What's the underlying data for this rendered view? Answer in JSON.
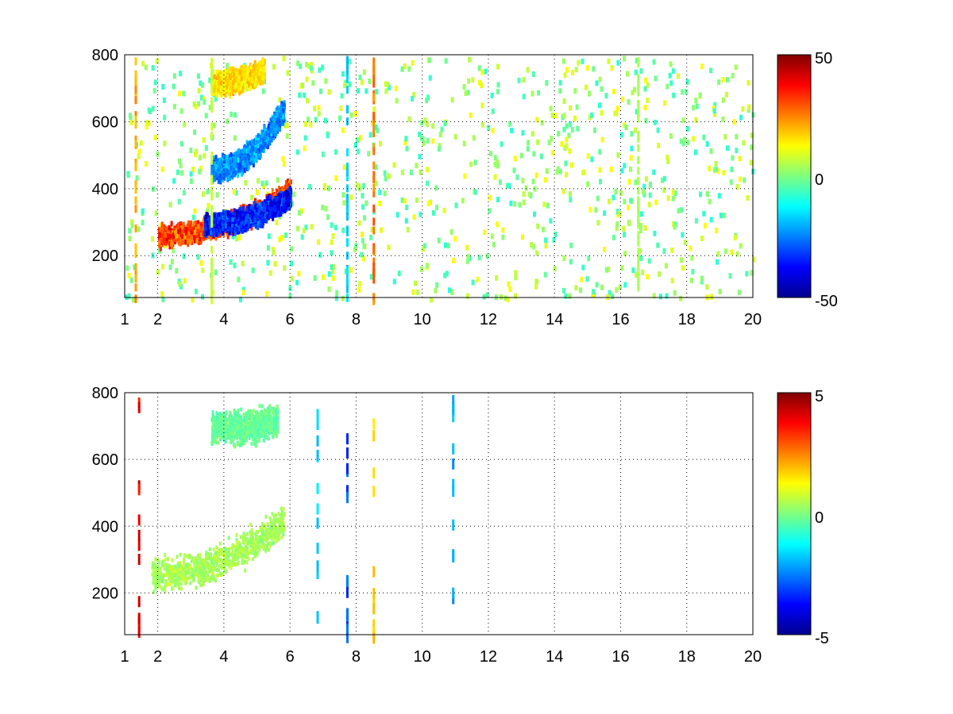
{
  "chart_data": [
    {
      "type": "heatmap",
      "title": "",
      "xlabel": "",
      "ylabel": "",
      "xlim": [
        1,
        20
      ],
      "ylim": [
        75,
        800
      ],
      "x_ticks": [
        "1",
        "2",
        "4",
        "6",
        "8",
        "10",
        "12",
        "14",
        "16",
        "18",
        "20"
      ],
      "y_ticks": [
        "200",
        "400",
        "600",
        "800"
      ],
      "colorbar": {
        "min": -50,
        "max": 50,
        "ticks": [
          "50",
          "0",
          "-50"
        ]
      },
      "colormap": "jet",
      "grid": true,
      "density": "dense",
      "features": [
        {
          "x": [
            2.0,
            6.0
          ],
          "y_center_at_x_start": 265,
          "y_center_at_x_end": 400,
          "value": 40
        },
        {
          "x": [
            3.4,
            6.0
          ],
          "y_center_at_x_start": 300,
          "y_center_at_x_end": 380,
          "value": -45
        },
        {
          "x": [
            3.6,
            5.8
          ],
          "y_center_at_x_start": 460,
          "y_center_at_x_end": 640,
          "value": -30
        },
        {
          "x": [
            3.6,
            5.2
          ],
          "y_center_at_x_start": 720,
          "y_center_at_x_end": 760,
          "value": 20
        }
      ],
      "stripes": [
        {
          "x": 1.3,
          "value": 25
        },
        {
          "x": 3.6,
          "value": 8
        },
        {
          "x": 7.7,
          "value": -20
        },
        {
          "x": 8.5,
          "value": 30
        },
        {
          "x": 16.5,
          "value": 5
        }
      ]
    },
    {
      "type": "heatmap",
      "title": "",
      "xlabel": "",
      "ylabel": "",
      "xlim": [
        1,
        20
      ],
      "ylim": [
        75,
        800
      ],
      "x_ticks": [
        "1",
        "2",
        "4",
        "6",
        "8",
        "10",
        "12",
        "14",
        "16",
        "18",
        "20"
      ],
      "y_ticks": [
        "200",
        "400",
        "600",
        "800"
      ],
      "colorbar": {
        "min": -5,
        "max": 5,
        "ticks": [
          "5",
          "0",
          "-5"
        ]
      },
      "colormap": "jet",
      "grid": true,
      "density": "sparse",
      "features": [
        {
          "x": [
            1.8,
            5.8
          ],
          "y_center_at_x_start": 260,
          "y_center_at_x_end": 420,
          "value": 0.5
        },
        {
          "x": [
            3.6,
            5.6
          ],
          "y_center_at_x_start": 700,
          "y_center_at_x_end": 720,
          "value": -0.3
        }
      ],
      "stripes": [
        {
          "x": 1.4,
          "value": 4.5
        },
        {
          "x": 6.8,
          "value": -2
        },
        {
          "x": 7.7,
          "value": -3.5
        },
        {
          "x": 8.5,
          "value": 2
        },
        {
          "x": 10.9,
          "value": -2.5
        }
      ]
    }
  ]
}
